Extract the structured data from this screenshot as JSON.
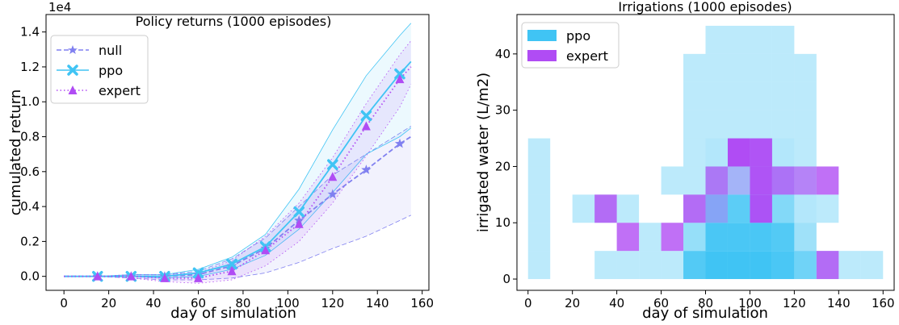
{
  "chart_data": [
    {
      "type": "line",
      "title": "Policy returns (1000 episodes)",
      "xlabel": "day of simulation",
      "ylabel": "cumulated return",
      "offset_text": "1e4",
      "xlim": [
        -8,
        163
      ],
      "ylim": [
        -0.08,
        1.5
      ],
      "xticks": [
        0,
        20,
        40,
        60,
        80,
        100,
        120,
        140,
        160
      ],
      "yticks": [
        0.0,
        0.2,
        0.4,
        0.6,
        0.8,
        1.0,
        1.2,
        1.4
      ],
      "x": [
        0,
        15,
        30,
        45,
        60,
        75,
        90,
        105,
        120,
        135,
        150,
        155
      ],
      "marker_x": [
        15,
        30,
        45,
        60,
        75,
        90,
        105,
        120,
        135,
        150
      ],
      "legend_position": "top-left",
      "series": [
        {
          "name": "null",
          "color": "#8080f0",
          "marker": "star",
          "linestyle": "dashed",
          "mean": [
            0,
            0.0,
            0.0,
            0.0,
            0.01,
            0.06,
            0.16,
            0.32,
            0.47,
            0.61,
            0.76,
            0.8
          ],
          "lower": [
            0,
            0.0,
            -0.01,
            -0.02,
            -0.02,
            -0.01,
            0.02,
            0.08,
            0.16,
            0.23,
            0.32,
            0.35
          ],
          "upper": [
            0,
            0.0,
            0.01,
            0.01,
            0.03,
            0.1,
            0.22,
            0.4,
            0.58,
            0.7,
            0.82,
            0.86
          ]
        },
        {
          "name": "ppo",
          "color": "#40c4f4",
          "marker": "x",
          "linestyle": "solid",
          "mean": [
            0,
            0.0,
            0.0,
            0.0,
            0.02,
            0.07,
            0.17,
            0.37,
            0.64,
            0.92,
            1.16,
            1.23
          ],
          "lower": [
            0,
            0.0,
            0.0,
            -0.01,
            0.0,
            0.04,
            0.12,
            0.27,
            0.48,
            0.7,
            0.8,
            0.85
          ],
          "upper": [
            0,
            0.0,
            0.01,
            0.01,
            0.04,
            0.11,
            0.24,
            0.5,
            0.84,
            1.15,
            1.38,
            1.45
          ]
        },
        {
          "name": "expert",
          "color": "#b04cf4",
          "marker": "triangle",
          "linestyle": "dotted",
          "mean": [
            0,
            0.0,
            0.0,
            -0.01,
            -0.01,
            0.03,
            0.15,
            0.3,
            0.57,
            0.86,
            1.13,
            1.2
          ],
          "lower": [
            0,
            0.0,
            -0.01,
            -0.03,
            -0.04,
            -0.02,
            0.06,
            0.2,
            0.42,
            0.69,
            0.97,
            1.1
          ],
          "upper": [
            0,
            0.0,
            0.01,
            0.01,
            0.02,
            0.09,
            0.23,
            0.42,
            0.68,
            0.99,
            1.27,
            1.35
          ]
        }
      ]
    },
    {
      "type": "heatmap",
      "title": "Irrigations (1000 episodes)",
      "xlabel": "day of simulation",
      "ylabel": "irrigated water (L/m2)",
      "xlim": [
        -5,
        165
      ],
      "ylim": [
        -2,
        47
      ],
      "xticks": [
        0,
        20,
        40,
        60,
        80,
        100,
        120,
        140,
        160
      ],
      "yticks": [
        0,
        10,
        20,
        30,
        40
      ],
      "x_bin_width": 10,
      "y_bin_height": 5,
      "legend_position": "top-left",
      "series": [
        {
          "name": "ppo",
          "color": "#40c4f4",
          "cells": [
            [
              0,
              0,
              0.35
            ],
            [
              0,
              5,
              0.35
            ],
            [
              0,
              10,
              0.35
            ],
            [
              0,
              15,
              0.35
            ],
            [
              0,
              20,
              0.35
            ],
            [
              20,
              10,
              0.35
            ],
            [
              30,
              0,
              0.35
            ],
            [
              30,
              10,
              0.35
            ],
            [
              40,
              0,
              0.35
            ],
            [
              40,
              10,
              0.35
            ],
            [
              50,
              0,
              0.35
            ],
            [
              50,
              5,
              0.35
            ],
            [
              60,
              0,
              0.35
            ],
            [
              60,
              15,
              0.35
            ],
            [
              70,
              0,
              0.9
            ],
            [
              70,
              5,
              0.55
            ],
            [
              70,
              10,
              0.35
            ],
            [
              70,
              15,
              0.35
            ],
            [
              70,
              20,
              0.35
            ],
            [
              70,
              25,
              0.35
            ],
            [
              70,
              30,
              0.35
            ],
            [
              70,
              35,
              0.35
            ],
            [
              80,
              0,
              1.0
            ],
            [
              80,
              5,
              0.95
            ],
            [
              80,
              10,
              0.75
            ],
            [
              80,
              15,
              0.5
            ],
            [
              80,
              20,
              0.4
            ],
            [
              80,
              25,
              0.35
            ],
            [
              80,
              30,
              0.35
            ],
            [
              80,
              35,
              0.35
            ],
            [
              80,
              40,
              0.35
            ],
            [
              90,
              0,
              1.0
            ],
            [
              90,
              5,
              0.95
            ],
            [
              90,
              10,
              0.85
            ],
            [
              90,
              15,
              0.5
            ],
            [
              90,
              20,
              0.4
            ],
            [
              90,
              25,
              0.35
            ],
            [
              90,
              30,
              0.35
            ],
            [
              90,
              35,
              0.35
            ],
            [
              90,
              40,
              0.35
            ],
            [
              100,
              0,
              1.0
            ],
            [
              100,
              5,
              0.95
            ],
            [
              100,
              10,
              0.8
            ],
            [
              100,
              15,
              0.5
            ],
            [
              100,
              20,
              0.45
            ],
            [
              100,
              25,
              0.35
            ],
            [
              100,
              30,
              0.35
            ],
            [
              100,
              35,
              0.35
            ],
            [
              100,
              40,
              0.35
            ],
            [
              110,
              0,
              0.95
            ],
            [
              110,
              5,
              0.9
            ],
            [
              110,
              10,
              0.65
            ],
            [
              110,
              15,
              0.5
            ],
            [
              110,
              20,
              0.4
            ],
            [
              110,
              25,
              0.35
            ],
            [
              110,
              30,
              0.35
            ],
            [
              110,
              35,
              0.35
            ],
            [
              110,
              40,
              0.35
            ],
            [
              120,
              0,
              0.75
            ],
            [
              120,
              5,
              0.5
            ],
            [
              120,
              10,
              0.4
            ],
            [
              120,
              15,
              0.35
            ],
            [
              120,
              20,
              0.35
            ],
            [
              120,
              25,
              0.35
            ],
            [
              120,
              30,
              0.35
            ],
            [
              120,
              35,
              0.35
            ],
            [
              130,
              0,
              0.35
            ],
            [
              130,
              10,
              0.35
            ],
            [
              140,
              0,
              0.35
            ],
            [
              150,
              0,
              0.35
            ]
          ]
        },
        {
          "name": "expert",
          "color": "#b04cf4",
          "cells": [
            [
              30,
              10,
              0.8
            ],
            [
              40,
              5,
              0.8
            ],
            [
              60,
              5,
              0.8
            ],
            [
              70,
              10,
              0.8
            ],
            [
              80,
              15,
              0.7
            ],
            [
              80,
              10,
              0.35
            ],
            [
              90,
              20,
              1.0
            ],
            [
              90,
              15,
              0.3
            ],
            [
              100,
              10,
              0.95
            ],
            [
              100,
              15,
              0.95
            ],
            [
              100,
              20,
              0.95
            ],
            [
              110,
              15,
              0.75
            ],
            [
              120,
              15,
              0.65
            ],
            [
              130,
              15,
              0.8
            ],
            [
              130,
              0,
              0.8
            ]
          ]
        }
      ]
    }
  ]
}
